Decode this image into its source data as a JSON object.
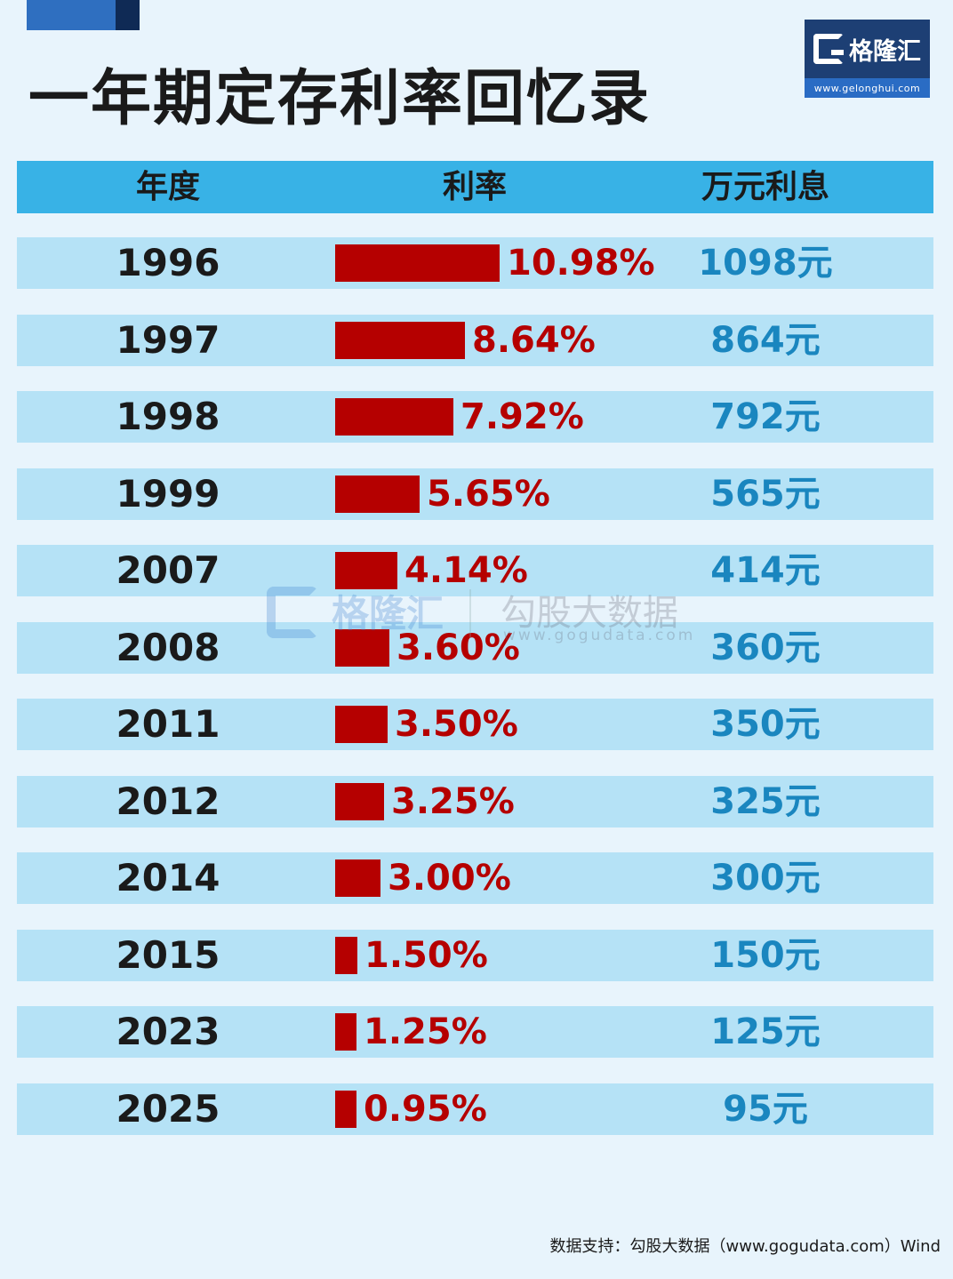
{
  "title": "一年期定存利率回忆录",
  "logo": {
    "name": "格隆汇",
    "url": "www.gelonghui.com"
  },
  "headers": {
    "year": "年度",
    "rate": "利率",
    "interest": "万元利息"
  },
  "chart_data": {
    "type": "bar",
    "categories": [
      "1996",
      "1997",
      "1998",
      "1999",
      "2007",
      "2008",
      "2011",
      "2012",
      "2014",
      "2015",
      "2023",
      "2025"
    ],
    "values": [
      10.98,
      8.64,
      7.92,
      5.65,
      4.14,
      3.6,
      3.5,
      3.25,
      3.0,
      1.5,
      1.25,
      0.95
    ],
    "value_labels": [
      "10.98%",
      "8.64%",
      "7.92%",
      "5.65%",
      "4.14%",
      "3.60%",
      "3.50%",
      "3.25%",
      "3.00%",
      "1.50%",
      "1.25%",
      "0.95%"
    ],
    "interest_labels": [
      "1098元",
      "864元",
      "792元",
      "565元",
      "414元",
      "360元",
      "350元",
      "325元",
      "300元",
      "150元",
      "125元",
      "95元"
    ],
    "title": "一年期定存利率回忆录",
    "bar_color": "#b50000"
  },
  "watermark": {
    "brand": "格隆汇",
    "partner": "勾股大数据",
    "url": "www.gogudata.com"
  },
  "footer": "数据支持：勾股大数据（www.gogudata.com）Wind"
}
